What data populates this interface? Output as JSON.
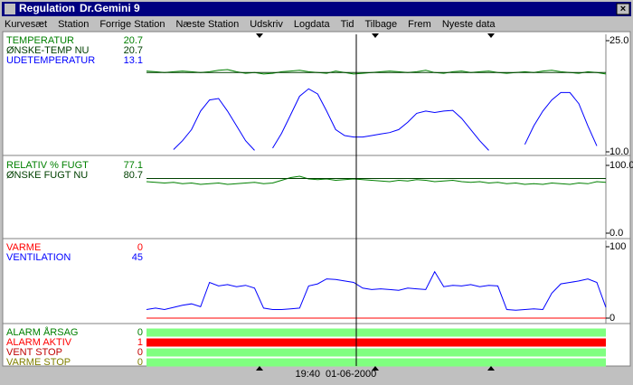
{
  "window": {
    "title": "Regulation",
    "station": "Dr.Gemini 9"
  },
  "menu": [
    "Kurvesæt",
    "Station",
    "Forrige Station",
    "Næste Station",
    "Udskriv",
    "Logdata",
    "Tid",
    "Tilbage",
    "Frem",
    "Nyeste data"
  ],
  "panels": [
    {
      "ylim": [
        10,
        25
      ],
      "yticks": [
        {
          "value": 25,
          "label": "25.0"
        },
        {
          "value": 10,
          "label": "10.0"
        }
      ],
      "series": [
        {
          "name": "TEMPERATUR",
          "value": 20.7,
          "color": "#008000",
          "values": [
            20.9,
            20.8,
            20.7,
            20.8,
            20.9,
            20.8,
            20.7,
            20.8,
            21.0,
            21.1,
            20.8,
            20.6,
            20.7,
            20.5,
            20.6,
            20.8,
            20.9,
            21.0,
            20.8,
            20.7,
            20.6,
            20.9,
            20.7,
            20.5,
            20.6,
            20.7,
            20.8,
            20.9,
            20.8,
            20.7,
            20.8,
            21.0,
            20.7,
            20.6,
            20.8,
            20.9,
            20.7,
            20.8,
            20.9,
            20.7,
            20.6,
            20.7,
            20.8,
            20.7,
            20.9,
            21.0,
            20.8,
            20.7,
            20.6,
            20.8,
            20.7,
            20.5
          ]
        },
        {
          "name": "ØNSKE-TEMP NU",
          "value": 20.7,
          "color": "#004000",
          "values": [
            20.7,
            20.7
          ]
        },
        {
          "name": "UDETEMPERATUR",
          "value": 13.1,
          "color": "#0000ff",
          "values": [
            null,
            null,
            null,
            10.3,
            11.5,
            13,
            15.5,
            17,
            17.2,
            15.5,
            13.5,
            11.5,
            10.2,
            null,
            10.5,
            12.5,
            15,
            17.5,
            18.5,
            17.8,
            15.5,
            13,
            12.2,
            12,
            12,
            12.2,
            12.4,
            12.6,
            13,
            14,
            15.2,
            15.5,
            15.3,
            15.5,
            15.6,
            14.5,
            13,
            11.5,
            10.2,
            null,
            null,
            null,
            11,
            13.5,
            15.5,
            17,
            18,
            18,
            16.5,
            13.5,
            10.8,
            null
          ]
        }
      ]
    },
    {
      "ylim": [
        0,
        100
      ],
      "yticks": [
        {
          "value": 100,
          "label": "100.0"
        },
        {
          "value": 0,
          "label": "0.0"
        }
      ],
      "series": [
        {
          "name": "RELATIV % FUGT",
          "value": 77.1,
          "color": "#008000",
          "values": [
            76,
            75,
            74,
            75,
            73,
            74,
            72,
            73,
            74,
            72,
            73,
            74,
            75,
            73,
            74,
            78,
            82,
            84,
            80,
            79,
            80,
            78,
            79,
            80,
            79,
            78,
            77,
            76,
            78,
            77,
            79,
            78,
            76,
            77,
            78,
            76,
            75,
            76,
            74,
            75,
            73,
            74,
            72,
            73,
            72,
            74,
            73,
            72,
            74,
            73,
            76,
            75
          ]
        },
        {
          "name": "ØNSKE FUGT NU",
          "value": 80.7,
          "color": "#004000",
          "values": [
            80.7,
            80.7
          ]
        }
      ]
    },
    {
      "ylim": [
        0,
        100
      ],
      "yticks": [
        100,
        0
      ],
      "series": [
        {
          "name": "VARME",
          "value": 0,
          "color": "#ff0000",
          "values": [
            0,
            0
          ]
        },
        {
          "name": "VENTILATION",
          "value": 45,
          "color": "#0000ff",
          "values": [
            12,
            14,
            12,
            15,
            18,
            20,
            16,
            50,
            45,
            47,
            44,
            46,
            42,
            14,
            12,
            12,
            13,
            14,
            45,
            48,
            55,
            54,
            52,
            50,
            42,
            40,
            41,
            40,
            39,
            42,
            41,
            40,
            65,
            44,
            46,
            45,
            47,
            44,
            46,
            45,
            12,
            11,
            12,
            13,
            12,
            35,
            48,
            50,
            52,
            55,
            50,
            15
          ]
        }
      ]
    }
  ],
  "alarms": [
    {
      "name": "ALARM ÅRSAG",
      "value": 0,
      "color": "#008000"
    },
    {
      "name": "ALARM AKTIV",
      "value": 1,
      "color": "#ff0000"
    },
    {
      "name": "VENT STOP",
      "value": 0,
      "color": "#c00000"
    },
    {
      "name": "VARME STOP",
      "value": 0,
      "color": "#808000"
    }
  ],
  "cursor": {
    "time": "19:40",
    "date": "01-06-2000"
  }
}
